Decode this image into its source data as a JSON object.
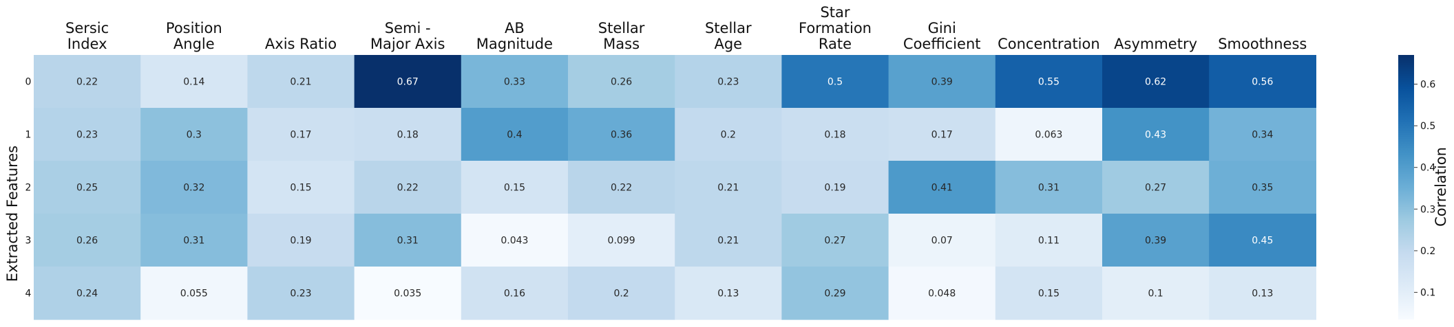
{
  "chart_data": {
    "type": "heatmap",
    "title": "",
    "xlabel": "",
    "ylabel": "Extracted Features",
    "colorbar_label": "Correlation",
    "colormap": "Blues",
    "x_labels": [
      [
        "Sersic",
        "Index"
      ],
      [
        "Position",
        "Angle"
      ],
      [
        "Axis Ratio"
      ],
      [
        "Semi -",
        "Major Axis"
      ],
      [
        "AB",
        "Magnitude"
      ],
      [
        "Stellar",
        "Mass"
      ],
      [
        "Stellar",
        "Age"
      ],
      [
        "Star",
        "Formation",
        "Rate"
      ],
      [
        "Gini",
        "Coefficient"
      ],
      [
        "Concentration"
      ],
      [
        "Asymmetry"
      ],
      [
        "Smoothness"
      ]
    ],
    "y_labels": [
      "0",
      "1",
      "2",
      "3",
      "4"
    ],
    "values": [
      [
        0.22,
        0.14,
        0.21,
        0.67,
        0.33,
        0.26,
        0.23,
        0.5,
        0.39,
        0.55,
        0.62,
        0.56
      ],
      [
        0.23,
        0.3,
        0.17,
        0.18,
        0.4,
        0.36,
        0.2,
        0.18,
        0.17,
        0.063,
        0.43,
        0.34
      ],
      [
        0.25,
        0.32,
        0.15,
        0.22,
        0.15,
        0.22,
        0.21,
        0.19,
        0.41,
        0.31,
        0.27,
        0.35
      ],
      [
        0.26,
        0.31,
        0.19,
        0.31,
        0.043,
        0.099,
        0.21,
        0.27,
        0.07,
        0.11,
        0.39,
        0.45
      ],
      [
        0.24,
        0.055,
        0.23,
        0.035,
        0.16,
        0.2,
        0.13,
        0.29,
        0.048,
        0.15,
        0.1,
        0.13
      ]
    ],
    "vmin": 0.035,
    "vmax": 0.67,
    "colorbar_ticks": [
      "0.1",
      "0.2",
      "0.3",
      "0.4",
      "0.5",
      "0.6"
    ],
    "colorbar_tick_values": [
      0.1,
      0.2,
      0.3,
      0.4,
      0.5,
      0.6
    ]
  }
}
